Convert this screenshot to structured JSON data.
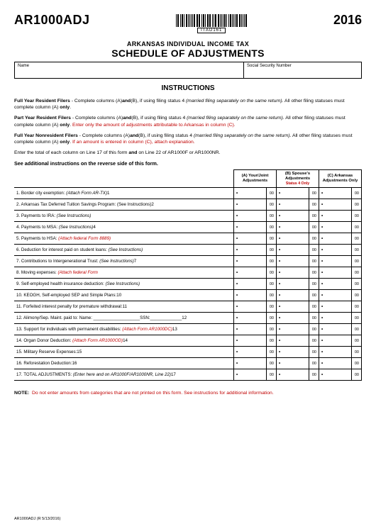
{
  "form_code": "AR1000ADJ",
  "barcode_text": "ITAD161",
  "year": "2016",
  "title_line1": "ARKANSAS INDIVIDUAL INCOME TAX",
  "title_line2": "SCHEDULE OF ADJUSTMENTS",
  "name_label": "Name",
  "ssn_label": "Social Security Number",
  "instructions_header": "INSTRUCTIONS",
  "para1_lead": "Full Year Resident Filers",
  "para1_rest_a": " - Complete columns (A)",
  "para1_and": "and",
  "para1_rest_b": "(B), if using filing status 4 ",
  "para1_ital": "(married filing separately on the same return)",
  "para1_rest_c": ".  All other filing statuses must complete column (A) ",
  "para1_only": "only",
  "para2_lead": "Part Year Resident Filers",
  "para2_red": "Enter only the amount of adjustments attributable to Arkansas in column (C).",
  "para3_lead": "Full Year Nonresident Filers",
  "para3_red": "If an amount is entered in column (C), attach explanation.",
  "para4": "Enter the total of each column on Line 17 of this form ",
  "para4_and": "and",
  "para4_b": " on Line 22 of AR1000F or AR1000NR.",
  "see_additional": "See additional instructions on the reverse side of this form.",
  "col_a": "(A)  Your/Joint Adjustments",
  "col_b": "(B)  Spouse's Adjustments",
  "col_b_sub": "Status 4 Only",
  "col_c": "(C)  Arkansas Adjustments Only",
  "rows": [
    {
      "n": "1.",
      "desc": "Border city exemption: ",
      "ital": "(Attach Form AR-TX)",
      "tail": "1"
    },
    {
      "n": "2.",
      "desc": "Arkansas Tax Deferred Tuition Savings Program: (See Instructions)",
      "tail": "2"
    },
    {
      "n": "3.",
      "desc": "Payments to IRA: ",
      "ital": "(See Instructions)",
      "tail": ""
    },
    {
      "n": "4.",
      "desc": "Payments to MSA: ",
      "ital": "(See Instructions)",
      "tail": "4"
    },
    {
      "n": "5.",
      "desc": "Payments to HSA: ",
      "red_ital": "(Attach federal Form 8889)",
      "tail": ""
    },
    {
      "n": "6.",
      "desc": "Deduction for interest paid on student loans: ",
      "ital": "(See Instructions)",
      "tail": ""
    },
    {
      "n": "7.",
      "desc": "Contributions to Intergenerational Trust: ",
      "ital": "(See Instructions)",
      "tail": "7"
    },
    {
      "n": "8.",
      "desc": "Moving expenses: ",
      "red_ital": "(Attach federal Form",
      "tail": ""
    },
    {
      "n": "9.",
      "desc": "Self-employed health insurance deduction: ",
      "ital": "(See Instructions)",
      "tail": ""
    },
    {
      "n": "10.",
      "desc": "KEOGH, Self-employed SEP and Simple Plans:",
      "tail": "10"
    },
    {
      "n": "11.",
      "desc": "Forfeited interest penalty for premature withdrawal:",
      "tail": "11"
    },
    {
      "n": "12.",
      "desc": "Alimony/Sep. Maint. paid to: Name: ___________________SSN:_____________",
      "tail": "12",
      "short_col_a": true
    },
    {
      "n": "13.",
      "desc": "Support for individuals with permanent disabilities: ",
      "red_ital": "(Attach Form AR1000DC)",
      "tail": "13"
    },
    {
      "n": "14.",
      "desc": "Organ Donor Deduction: ",
      "red_ital": "(Attach Form AR1000OD)",
      "tail": "14"
    },
    {
      "n": "15.",
      "desc": "Military Reserve Expenses:",
      "tail": "15"
    },
    {
      "n": "16.",
      "desc": "Reforestation Deduction:",
      "tail": "16"
    },
    {
      "n": "17.",
      "desc": "TOTAL ADJUSTMENTS: ",
      "ital": "(Enter here and on AR1000F/AR1000NR, Line 22)",
      "tail": "17"
    }
  ],
  "cents": "00",
  "note_lead": "NOTE:",
  "note_red": "Do not enter amounts from categories that are not printed on this form.  See instructions for additional information.",
  "footer": "AR1000ADJ (R 5/13/2016)"
}
